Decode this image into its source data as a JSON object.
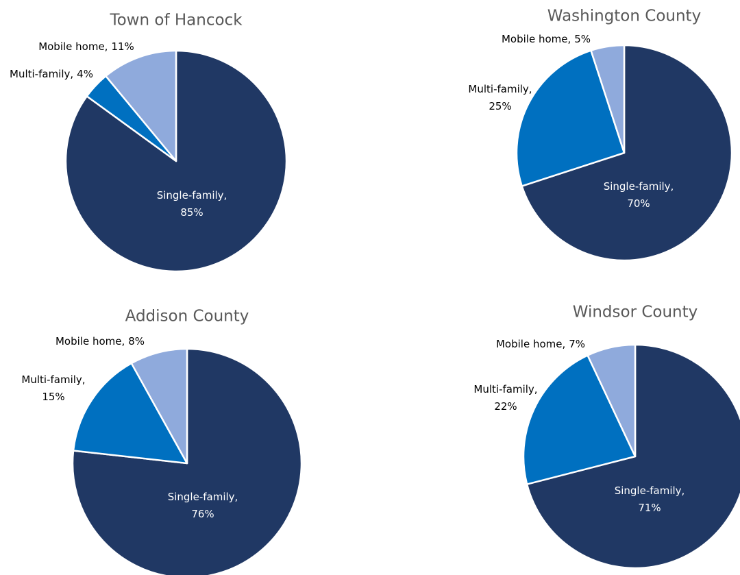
{
  "chart_data": [
    {
      "type": "pie",
      "title": "Town of Hancock",
      "categories": [
        "Single-family,",
        "Multi-family,",
        "Mobile home,"
      ],
      "values": [
        85,
        4,
        11
      ],
      "value_labels": [
        "85%",
        "4%",
        "11%"
      ],
      "colors": [
        "#203864",
        "#0070c0",
        "#8faadc"
      ]
    },
    {
      "type": "pie",
      "title": "Washington County",
      "categories": [
        "Single-family,",
        "Multi-family,",
        "Mobile home,"
      ],
      "values": [
        70,
        25,
        5
      ],
      "value_labels": [
        "70%",
        "25%",
        "5%"
      ],
      "colors": [
        "#203864",
        "#0070c0",
        "#8faadc"
      ]
    },
    {
      "type": "pie",
      "title": "Addison County",
      "categories": [
        "Single-family,",
        "Multi-family,",
        "Mobile home,"
      ],
      "values": [
        76,
        15,
        8
      ],
      "value_labels": [
        "76%",
        "15%",
        "8%"
      ],
      "colors": [
        "#203864",
        "#0070c0",
        "#8faadc"
      ]
    },
    {
      "type": "pie",
      "title": "Windsor County",
      "categories": [
        "Single-family,",
        "Multi-family,",
        "Mobile home,"
      ],
      "values": [
        71,
        22,
        7
      ],
      "value_labels": [
        "71%",
        "22%",
        "7%"
      ],
      "colors": [
        "#203864",
        "#0070c0",
        "#8faadc"
      ]
    }
  ]
}
